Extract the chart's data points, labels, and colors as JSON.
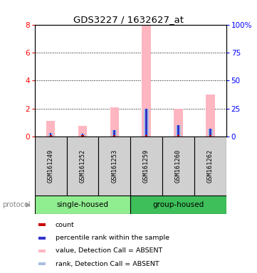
{
  "title": "GDS3227 / 1632627_at",
  "samples": [
    "GSM161249",
    "GSM161252",
    "GSM161253",
    "GSM161259",
    "GSM161260",
    "GSM161262"
  ],
  "ylim_left": [
    0,
    8
  ],
  "ylim_right": [
    0,
    100
  ],
  "yticks_left": [
    0,
    2,
    4,
    6,
    8
  ],
  "yticks_right": [
    0,
    25,
    50,
    75,
    100
  ],
  "yticklabels_right": [
    "0",
    "25",
    "50",
    "75",
    "100%"
  ],
  "value_bars": [
    1.1,
    0.75,
    2.1,
    8.0,
    2.0,
    3.0
  ],
  "rank_bars_pct": [
    3.0,
    2.5,
    6.0,
    25.0,
    10.0,
    7.0
  ],
  "count_vals": [
    0.08,
    0.08,
    0.08,
    0.08,
    0.08,
    0.08
  ],
  "value_color": "#FFB6C1",
  "rank_color": "#AABFDD",
  "count_color": "#CC0000",
  "rank_sq_color": "#3333CC",
  "bg_color": "#D0D0D0",
  "group1_color": "#90EE90",
  "group2_color": "#3EBF5A",
  "legend_labels": [
    "count",
    "percentile rank within the sample",
    "value, Detection Call = ABSENT",
    "rank, Detection Call = ABSENT"
  ],
  "legend_colors": [
    "#CC0000",
    "#3333CC",
    "#FFB6C1",
    "#AABFDD"
  ]
}
